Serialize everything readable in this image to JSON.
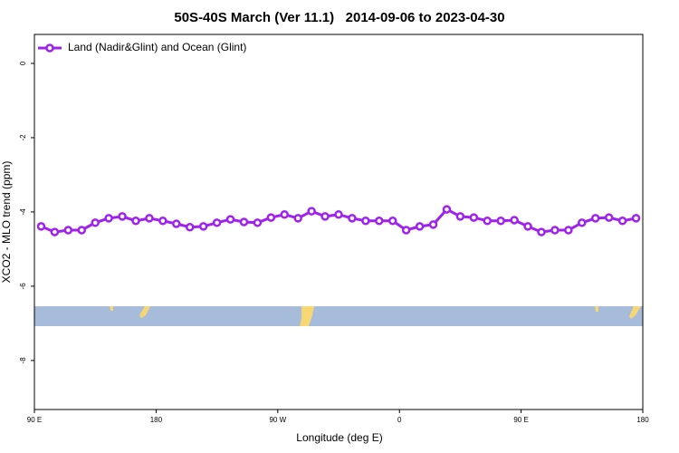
{
  "chart_data": {
    "type": "line",
    "title": "50S-40S March (Ver 11.1)   2014-09-06 to 2023-04-30",
    "x_label": "Longitude (deg E)",
    "y_label": "XCO2 - MLO trend (ppm)",
    "xlim": [
      90,
      540
    ],
    "xticks": [
      {
        "value": 90,
        "label": "90 E"
      },
      {
        "value": 180,
        "label": "180"
      },
      {
        "value": 270,
        "label": "90 W"
      },
      {
        "value": 360,
        "label": "0"
      },
      {
        "value": 450,
        "label": "90 E"
      },
      {
        "value": 540,
        "label": "180"
      }
    ],
    "ylim": [
      -9.32,
      0.78
    ],
    "yticks": [
      0,
      -2,
      -4,
      -6,
      -8
    ],
    "legend": "top-left",
    "x": [
      95,
      105,
      115,
      125,
      135,
      145,
      155,
      165,
      175,
      185,
      195,
      205,
      215,
      225,
      235,
      245,
      255,
      265,
      275,
      285,
      295,
      305,
      315,
      325,
      335,
      345,
      355,
      365,
      375,
      385,
      395,
      405,
      415,
      425,
      435,
      445,
      455,
      465,
      475,
      485,
      495,
      505,
      515,
      525,
      535
    ],
    "series": [
      {
        "name": "Land (Nadir&Glint) and Ocean (Glint)",
        "color": "#a020f0",
        "values": [
          -4.39,
          -4.54,
          -4.49,
          -4.49,
          -4.29,
          -4.17,
          -4.12,
          -4.24,
          -4.17,
          -4.24,
          -4.32,
          -4.41,
          -4.39,
          -4.29,
          -4.2,
          -4.27,
          -4.29,
          -4.15,
          -4.07,
          -4.17,
          -3.98,
          -4.12,
          -4.07,
          -4.17,
          -4.24,
          -4.24,
          -4.24,
          -4.49,
          -4.39,
          -4.34,
          -3.93,
          -4.12,
          -4.15,
          -4.24,
          -4.24,
          -4.22,
          -4.39,
          -4.54,
          -4.49,
          -4.49,
          -4.29,
          -4.17,
          -4.15,
          -4.24,
          -4.17
        ]
      }
    ]
  }
}
